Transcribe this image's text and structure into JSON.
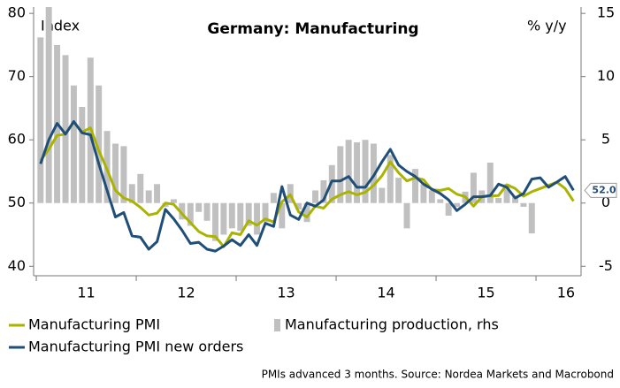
{
  "chart_data": {
    "type": "bar-line",
    "title": "Germany: Manufacturing",
    "ylabel": "Index",
    "y2label": "% y/y",
    "footnote": "PMIs advanced 3 months. Source: Nordea Markets and Macrobond",
    "x": [
      2011.042,
      2011.125,
      2011.208,
      2011.292,
      2011.375,
      2011.458,
      2011.542,
      2011.625,
      2011.708,
      2011.792,
      2011.875,
      2011.958,
      2012.042,
      2012.125,
      2012.208,
      2012.292,
      2012.375,
      2012.458,
      2012.542,
      2012.625,
      2012.708,
      2012.792,
      2012.875,
      2012.958,
      2013.042,
      2013.125,
      2013.208,
      2013.292,
      2013.375,
      2013.458,
      2013.542,
      2013.625,
      2013.708,
      2013.792,
      2013.875,
      2013.958,
      2014.042,
      2014.125,
      2014.208,
      2014.292,
      2014.375,
      2014.458,
      2014.542,
      2014.625,
      2014.708,
      2014.792,
      2014.875,
      2014.958,
      2015.042,
      2015.125,
      2015.208,
      2015.292,
      2015.375,
      2015.458,
      2015.542,
      2015.625,
      2015.708,
      2015.792,
      2015.875,
      2015.958,
      2016.042,
      2016.125,
      2016.208,
      2016.292,
      2016.375
    ],
    "series": [
      {
        "name": "Manufacturing PMI",
        "kind": "line",
        "color": "#a9b300",
        "values": [
          56.7,
          58.5,
          60.7,
          60.9,
          62.8,
          61.2,
          61.9,
          58.3,
          55.3,
          52.0,
          50.8,
          50.3,
          49.3,
          48.1,
          48.4,
          50.0,
          49.8,
          48.3,
          46.9,
          45.5,
          44.8,
          44.7,
          43.1,
          45.3,
          45.0,
          47.2,
          46.5,
          47.5,
          47.0,
          50.2,
          51.3,
          48.6,
          47.8,
          49.5,
          49.2,
          50.6,
          51.3,
          51.8,
          51.3,
          51.7,
          52.8,
          54.3,
          56.5,
          54.8,
          53.5,
          54.0,
          53.7,
          52.1,
          52.0,
          52.3,
          51.4,
          51.0,
          49.5,
          51.0,
          51.1,
          51.2,
          52.9,
          52.3,
          51.1,
          51.8,
          52.3,
          52.8,
          53.3,
          52.3,
          50.3
        ]
      },
      {
        "name": "Manufacturing PMI new orders",
        "kind": "line",
        "color": "#1f4e79",
        "values": [
          56.2,
          60.0,
          62.6,
          60.9,
          62.9,
          61.1,
          60.8,
          56.2,
          52.0,
          47.8,
          48.5,
          44.8,
          44.6,
          42.7,
          43.9,
          49.0,
          47.5,
          45.7,
          43.6,
          43.8,
          42.7,
          42.4,
          43.2,
          44.2,
          43.3,
          45.0,
          43.3,
          46.8,
          46.3,
          52.6,
          48.1,
          47.4,
          50.0,
          49.5,
          50.5,
          53.5,
          53.5,
          54.2,
          52.5,
          52.5,
          54.3,
          56.5,
          58.5,
          56.0,
          55.0,
          54.2,
          53.0,
          52.2,
          51.5,
          50.5,
          48.8,
          49.8,
          51.0,
          51.0,
          51.2,
          53.0,
          52.5,
          50.8,
          51.5,
          53.8,
          54.0,
          52.5,
          53.3,
          54.2,
          52.0
        ]
      },
      {
        "name": "Manufacturing production, rhs",
        "kind": "bar",
        "axis": "y2",
        "color": "#c0c0c0",
        "values": [
          13.1,
          15.5,
          12.5,
          11.7,
          9.3,
          7.6,
          11.5,
          9.3,
          5.7,
          4.7,
          4.5,
          1.5,
          2.3,
          1.0,
          1.5,
          -0.3,
          0.3,
          -1.3,
          -1.8,
          -0.7,
          -1.4,
          -3.0,
          -2.5,
          -2.0,
          -2.2,
          -1.8,
          -2.5,
          -1.5,
          0.8,
          -2.0,
          1.5,
          -0.5,
          -1.5,
          1.0,
          1.8,
          3.0,
          4.5,
          5.0,
          4.8,
          5.0,
          4.7,
          1.2,
          3.8,
          2.0,
          -2.0,
          2.7,
          1.5,
          1.0,
          0.3,
          -1.0,
          -0.3,
          0.9,
          2.4,
          1.0,
          3.2,
          0.4,
          1.5,
          0.5,
          -0.3,
          -2.4,
          null,
          null,
          null,
          null,
          null
        ]
      }
    ],
    "annotation": {
      "series": 1,
      "value": 52.0,
      "label": "52.0"
    },
    "xlim": [
      2010.973,
      2016.451
    ],
    "xticks": [
      {
        "value": 2011.5,
        "label": "11"
      },
      {
        "value": 2012.5,
        "label": "12"
      },
      {
        "value": 2013.5,
        "label": "13"
      },
      {
        "value": 2014.5,
        "label": "14"
      },
      {
        "value": 2015.5,
        "label": "15"
      },
      {
        "value": 2016.3,
        "label": "16"
      }
    ],
    "xminor_ticks": [
      2011,
      2012,
      2013,
      2014,
      2015,
      2016
    ],
    "ylim": [
      38.5,
      81
    ],
    "yticks": [
      40,
      50,
      60,
      70,
      80
    ],
    "y2lim": [
      -5.75,
      15.5
    ],
    "y2ticks": [
      -5,
      0,
      5,
      10,
      15
    ],
    "grid": false,
    "legend": "bottom"
  }
}
